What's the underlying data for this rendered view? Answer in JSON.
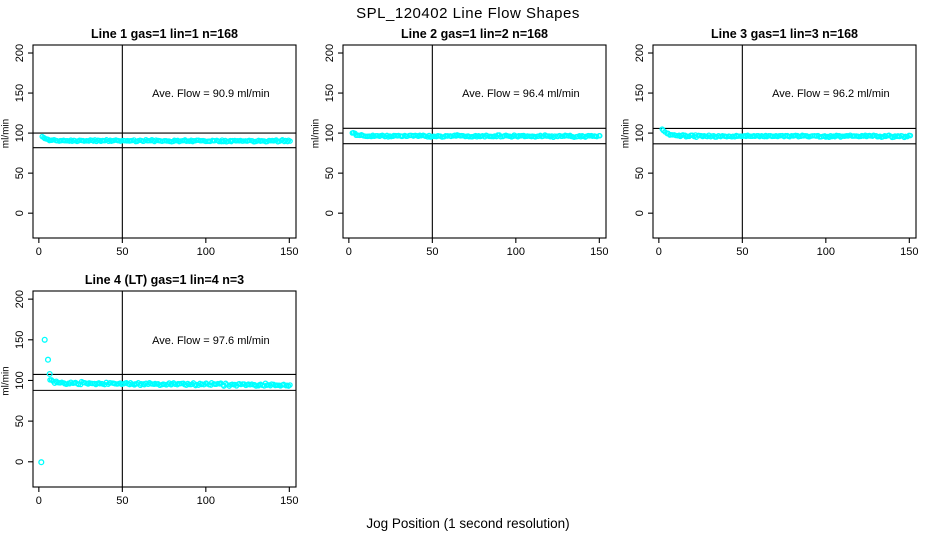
{
  "figure": {
    "title": "SPL_120402  Line Flow Shapes",
    "xlabel": "Jog Position (1 second resolution)"
  },
  "chart_data": [
    {
      "type": "scatter",
      "title": "Line 1 gas=1 lin=1 n=168",
      "annotation": "Ave. Flow =  90.9  ml/min",
      "ave_flow_ml_min": 90.9,
      "n": 168,
      "ylabel": "ml/min",
      "xticks": [
        0,
        50,
        100,
        150
      ],
      "yticks": [
        0,
        50,
        100,
        150,
        200
      ],
      "xlim": [
        -3.5,
        154
      ],
      "ylim": [
        -31,
        210
      ],
      "vline_x": 50,
      "hlines": [
        100.0,
        81.8
      ],
      "marker_color": "#00ffff",
      "seed": 11,
      "band": {
        "x_start": 2,
        "x_end": 150.5,
        "count": 166,
        "start_level": 95.5,
        "level": 90.7,
        "level_end": 90.3,
        "decay": 2.2,
        "noise": 1.0
      },
      "outliers": []
    },
    {
      "type": "scatter",
      "title": "Line 2 gas=1 lin=2 n=168",
      "annotation": "Ave. Flow =  96.4  ml/min",
      "ave_flow_ml_min": 96.4,
      "n": 168,
      "ylabel": "ml/min",
      "xticks": [
        0,
        50,
        100,
        150
      ],
      "yticks": [
        0,
        50,
        100,
        150,
        200
      ],
      "xlim": [
        -3.5,
        154
      ],
      "ylim": [
        -31,
        210
      ],
      "vline_x": 50,
      "hlines": [
        106.0,
        86.8
      ],
      "marker_color": "#00ffff",
      "seed": 22,
      "band": {
        "x_start": 2,
        "x_end": 150.5,
        "count": 166,
        "start_level": 101.0,
        "level": 96.6,
        "level_end": 96.1,
        "decay": 2.8,
        "noise": 1.1
      },
      "outliers": []
    },
    {
      "type": "scatter",
      "title": "Line 3 gas=1 lin=3 n=168",
      "annotation": "Ave. Flow =  96.2  ml/min",
      "ave_flow_ml_min": 96.2,
      "n": 168,
      "ylabel": "ml/min",
      "xticks": [
        0,
        50,
        100,
        150
      ],
      "yticks": [
        0,
        50,
        100,
        150,
        200
      ],
      "xlim": [
        -3.5,
        154
      ],
      "ylim": [
        -31,
        210
      ],
      "vline_x": 50,
      "hlines": [
        105.8,
        86.6
      ],
      "marker_color": "#00ffff",
      "seed": 33,
      "band": {
        "x_start": 2,
        "x_end": 150.5,
        "count": 166,
        "start_level": 104.5,
        "level": 96.4,
        "level_end": 95.9,
        "decay": 2.8,
        "noise": 1.1
      },
      "outliers": []
    },
    {
      "type": "scatter",
      "title": "Line 4 (LT) gas=1 lin=4 n=3",
      "annotation": "Ave. Flow =  97.6  ml/min",
      "ave_flow_ml_min": 97.6,
      "n": 3,
      "ylabel": "ml/min",
      "xticks": [
        0,
        50,
        100,
        150
      ],
      "yticks": [
        0,
        50,
        100,
        150,
        200
      ],
      "xlim": [
        -3.5,
        154
      ],
      "ylim": [
        -31,
        210
      ],
      "vline_x": 50,
      "hlines": [
        107.4,
        87.8
      ],
      "marker_color": "#00ffff",
      "seed": 44,
      "band": {
        "x_start": 6.5,
        "x_end": 150.5,
        "count": 158,
        "start_level": 103.0,
        "level": 96.8,
        "level_end": 94.2,
        "decay": 2.0,
        "noise": 1.6
      },
      "outliers": [
        [
          1.5,
          -0.5
        ],
        [
          3.5,
          150.0
        ],
        [
          5.5,
          125.5
        ],
        [
          6.5,
          108.0
        ]
      ]
    }
  ]
}
